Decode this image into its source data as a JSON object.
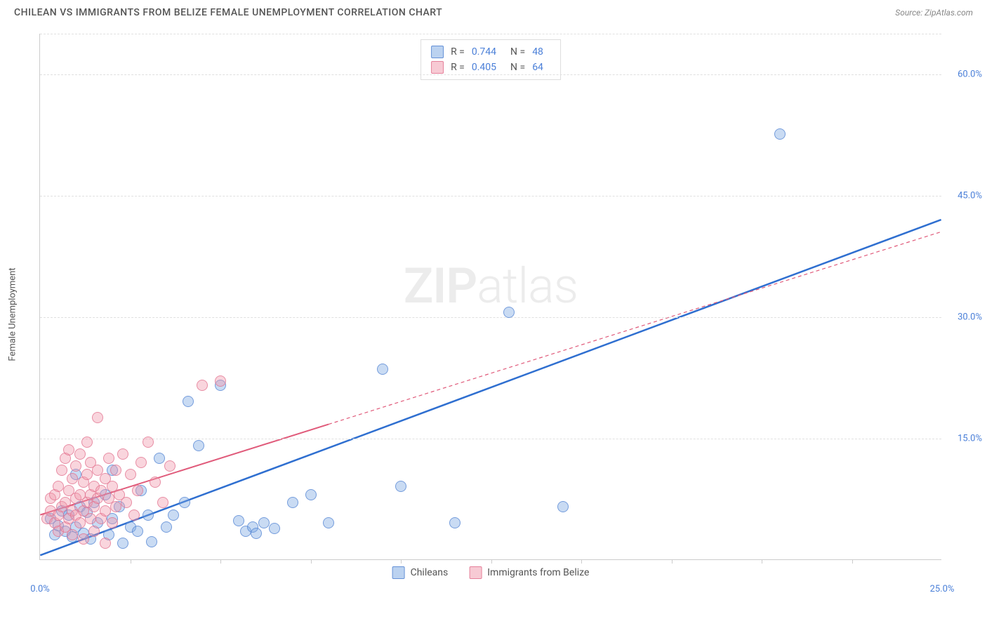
{
  "title": "CHILEAN VS IMMIGRANTS FROM BELIZE FEMALE UNEMPLOYMENT CORRELATION CHART",
  "source": "Source: ZipAtlas.com",
  "watermark_bold": "ZIP",
  "watermark_light": "atlas",
  "chart": {
    "type": "scatter",
    "background_color": "#ffffff",
    "grid_color": "#e0e0e0",
    "axis_color": "#cccccc",
    "tick_label_color": "#4a7fd8",
    "label_color": "#555555",
    "tick_fontsize": 13,
    "label_fontsize": 13,
    "title_fontsize": 14,
    "ylabel": "Female Unemployment",
    "xlim": [
      0,
      25
    ],
    "ylim": [
      0,
      65
    ],
    "xtick_step": 2.5,
    "ytick_step": 15,
    "ytick_labels": [
      "15.0%",
      "30.0%",
      "45.0%",
      "60.0%"
    ],
    "xtick_labels_shown": {
      "0": "0.0%",
      "25": "25.0%"
    },
    "marker_radius": 8,
    "series": [
      {
        "name": "Chileans",
        "color_fill": "rgba(120,165,225,0.4)",
        "color_stroke": "rgba(80,130,210,0.7)",
        "trend_color": "#2f6fd0",
        "trend_width": 2.5,
        "trend_dash": "none",
        "stats": {
          "R": "0.744",
          "N": "48"
        },
        "trend_line": {
          "x1": 0,
          "y1": 0.5,
          "x2": 25,
          "y2": 42
        },
        "points": [
          [
            0.3,
            5.0
          ],
          [
            0.4,
            3.0
          ],
          [
            0.5,
            4.2
          ],
          [
            0.6,
            6.0
          ],
          [
            0.7,
            3.5
          ],
          [
            0.8,
            5.5
          ],
          [
            0.9,
            2.8
          ],
          [
            1.0,
            4.0
          ],
          [
            1.1,
            6.5
          ],
          [
            1.2,
            3.2
          ],
          [
            1.3,
            5.8
          ],
          [
            1.4,
            2.5
          ],
          [
            1.5,
            7.0
          ],
          [
            1.6,
            4.5
          ],
          [
            1.8,
            8.0
          ],
          [
            1.9,
            3.0
          ],
          [
            2.0,
            5.0
          ],
          [
            2.2,
            6.5
          ],
          [
            2.3,
            2.0
          ],
          [
            2.5,
            4.0
          ],
          [
            2.7,
            3.5
          ],
          [
            2.8,
            8.5
          ],
          [
            3.0,
            5.5
          ],
          [
            3.1,
            2.2
          ],
          [
            3.3,
            12.5
          ],
          [
            3.5,
            4.0
          ],
          [
            3.7,
            5.5
          ],
          [
            4.0,
            7.0
          ],
          [
            4.1,
            19.5
          ],
          [
            4.4,
            14.0
          ],
          [
            5.0,
            21.5
          ],
          [
            5.5,
            4.8
          ],
          [
            5.7,
            3.5
          ],
          [
            5.9,
            4.0
          ],
          [
            6.0,
            3.2
          ],
          [
            6.2,
            4.5
          ],
          [
            6.5,
            3.8
          ],
          [
            7.0,
            7.0
          ],
          [
            7.5,
            8.0
          ],
          [
            8.0,
            4.5
          ],
          [
            9.5,
            23.5
          ],
          [
            10.0,
            9.0
          ],
          [
            11.5,
            4.5
          ],
          [
            13.0,
            30.5
          ],
          [
            14.5,
            6.5
          ],
          [
            20.5,
            52.5
          ],
          [
            1.0,
            10.5
          ],
          [
            2.0,
            11.0
          ]
        ]
      },
      {
        "name": "Immigrants from Belize",
        "color_fill": "rgba(240,150,170,0.4)",
        "color_stroke": "rgba(225,110,140,0.7)",
        "trend_color": "#e05a7a",
        "trend_width": 2,
        "trend_dash": "5,4",
        "trend_solid_until_x": 8,
        "stats": {
          "R": "0.405",
          "N": "64"
        },
        "trend_line": {
          "x1": 0,
          "y1": 5.5,
          "x2": 25,
          "y2": 40.5
        },
        "points": [
          [
            0.2,
            5.0
          ],
          [
            0.3,
            6.0
          ],
          [
            0.3,
            7.5
          ],
          [
            0.4,
            4.5
          ],
          [
            0.4,
            8.0
          ],
          [
            0.5,
            5.5
          ],
          [
            0.5,
            9.0
          ],
          [
            0.5,
            3.5
          ],
          [
            0.6,
            6.5
          ],
          [
            0.6,
            11.0
          ],
          [
            0.7,
            7.0
          ],
          [
            0.7,
            12.5
          ],
          [
            0.7,
            4.0
          ],
          [
            0.8,
            8.5
          ],
          [
            0.8,
            5.0
          ],
          [
            0.8,
            13.5
          ],
          [
            0.9,
            6.0
          ],
          [
            0.9,
            10.0
          ],
          [
            0.9,
            3.0
          ],
          [
            1.0,
            7.5
          ],
          [
            1.0,
            11.5
          ],
          [
            1.0,
            5.5
          ],
          [
            1.1,
            8.0
          ],
          [
            1.1,
            13.0
          ],
          [
            1.1,
            4.5
          ],
          [
            1.2,
            9.5
          ],
          [
            1.2,
            6.0
          ],
          [
            1.2,
            2.5
          ],
          [
            1.3,
            10.5
          ],
          [
            1.3,
            7.0
          ],
          [
            1.3,
            14.5
          ],
          [
            1.4,
            8.0
          ],
          [
            1.4,
            5.0
          ],
          [
            1.4,
            12.0
          ],
          [
            1.5,
            9.0
          ],
          [
            1.5,
            6.5
          ],
          [
            1.5,
            3.5
          ],
          [
            1.6,
            11.0
          ],
          [
            1.6,
            7.5
          ],
          [
            1.6,
            17.5
          ],
          [
            1.7,
            8.5
          ],
          [
            1.7,
            5.0
          ],
          [
            1.8,
            10.0
          ],
          [
            1.8,
            6.0
          ],
          [
            1.8,
            2.0
          ],
          [
            1.9,
            12.5
          ],
          [
            1.9,
            7.5
          ],
          [
            2.0,
            9.0
          ],
          [
            2.0,
            4.5
          ],
          [
            2.1,
            11.0
          ],
          [
            2.1,
            6.5
          ],
          [
            2.2,
            8.0
          ],
          [
            2.3,
            13.0
          ],
          [
            2.4,
            7.0
          ],
          [
            2.5,
            10.5
          ],
          [
            2.6,
            5.5
          ],
          [
            2.7,
            8.5
          ],
          [
            2.8,
            12.0
          ],
          [
            3.0,
            14.5
          ],
          [
            3.2,
            9.5
          ],
          [
            3.4,
            7.0
          ],
          [
            3.6,
            11.5
          ],
          [
            4.5,
            21.5
          ],
          [
            5.0,
            22.0
          ]
        ]
      }
    ]
  },
  "legend_top": [
    {
      "swatch": "blue",
      "items": [
        [
          "R =",
          "0.744"
        ],
        [
          "N =",
          "48"
        ]
      ]
    },
    {
      "swatch": "pink",
      "items": [
        [
          "R =",
          "0.405"
        ],
        [
          "N =",
          "64"
        ]
      ]
    }
  ],
  "legend_bottom": [
    {
      "swatch": "blue",
      "label": "Chileans"
    },
    {
      "swatch": "pink",
      "label": "Immigrants from Belize"
    }
  ]
}
